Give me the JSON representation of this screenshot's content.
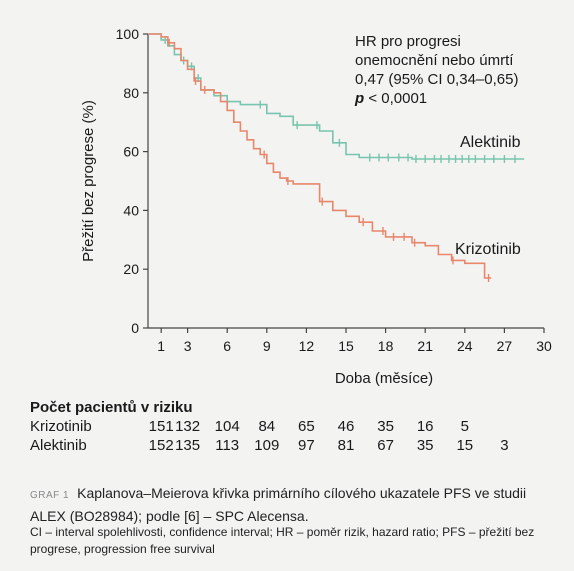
{
  "chart_data": {
    "type": "line",
    "chart_subtype": "kaplan-meier",
    "xlabel": "Doba (měsíce)",
    "ylabel": "Přežití bez progrese (%)",
    "xlim": [
      0,
      30
    ],
    "ylim": [
      0,
      100
    ],
    "x_ticks": [
      1,
      3,
      6,
      9,
      12,
      15,
      18,
      21,
      24,
      27,
      30
    ],
    "y_ticks": [
      0,
      20,
      40,
      60,
      80,
      100
    ],
    "annotation": {
      "lines": [
        "HR pro progresi",
        "onemocnění nebo úmrtí",
        "0,47 (95% CI 0,34–0,65)"
      ],
      "p_symbol": "p",
      "p_value": " < 0,0001"
    },
    "series": [
      {
        "name": "Alektinib",
        "color": "#78c4ae",
        "x": [
          0,
          1,
          1.5,
          2,
          2.5,
          3,
          3.5,
          4,
          5,
          6,
          7,
          8,
          9,
          10,
          11,
          12,
          13,
          14,
          15,
          16,
          18,
          20,
          22,
          24,
          26,
          28.5
        ],
        "y": [
          100,
          98,
          96,
          93,
          91,
          89,
          85,
          81,
          79,
          77,
          76,
          76,
          73,
          72,
          69,
          69,
          67,
          63,
          59,
          58,
          58,
          57.5,
          57.5,
          57.5,
          57.5,
          57.5
        ],
        "censored_x": [
          1.3,
          2.7,
          3.3,
          3.8,
          8.5,
          11.3,
          12.8,
          14.5,
          16.8,
          17.5,
          18.2,
          19,
          19.7,
          20.3,
          21,
          21.7,
          22.2,
          22.8,
          23.3,
          23.8,
          24.3,
          24.8,
          25.5,
          26.2,
          27,
          27.8
        ]
      },
      {
        "name": "Krizotinib",
        "color": "#e8876b",
        "x": [
          0,
          1,
          1.5,
          2,
          2.5,
          3,
          3.5,
          4,
          5,
          5.5,
          6,
          6.5,
          7,
          7.5,
          8,
          8.5,
          9,
          9.5,
          10,
          10.5,
          11,
          12,
          13,
          14,
          15,
          16,
          17,
          18,
          20,
          21,
          22,
          23,
          24,
          25.5,
          26
        ],
        "y": [
          100,
          99,
          97,
          95,
          91,
          88,
          84,
          81,
          80,
          77,
          74,
          70,
          67,
          64,
          61,
          59,
          56,
          53,
          51,
          50,
          49,
          49,
          43,
          40,
          38,
          36,
          33,
          31,
          29,
          28,
          25,
          23,
          22,
          17,
          17
        ],
        "censored_x": [
          1.6,
          3.6,
          4.3,
          8.8,
          10.6,
          13.2,
          16.3,
          17.8,
          18.6,
          19.4,
          20.2,
          23.1,
          25.8
        ]
      }
    ]
  },
  "risk_table": {
    "title": "Počet pacientů v riziku",
    "rows": [
      {
        "label": "Krizotinib",
        "values": [
          "151",
          "132",
          "104",
          "84",
          "65",
          "46",
          "35",
          "16",
          "5"
        ]
      },
      {
        "label": "Alektinib",
        "values": [
          "152",
          "135",
          "113",
          "109",
          "97",
          "81",
          "67",
          "35",
          "15",
          "3"
        ]
      }
    ]
  },
  "caption": {
    "label": "GRAF 1",
    "text": "Kaplanova–Meierova křivka primárního cílového ukazatele PFS ve studii ALEX (BO28984); podle [6] – SPC Alecensa."
  },
  "footnote": "CI – interval spolehlivosti, confidence interval; HR – poměr rizik, hazard ratio; PFS – přežití bez progrese, progression free survival"
}
